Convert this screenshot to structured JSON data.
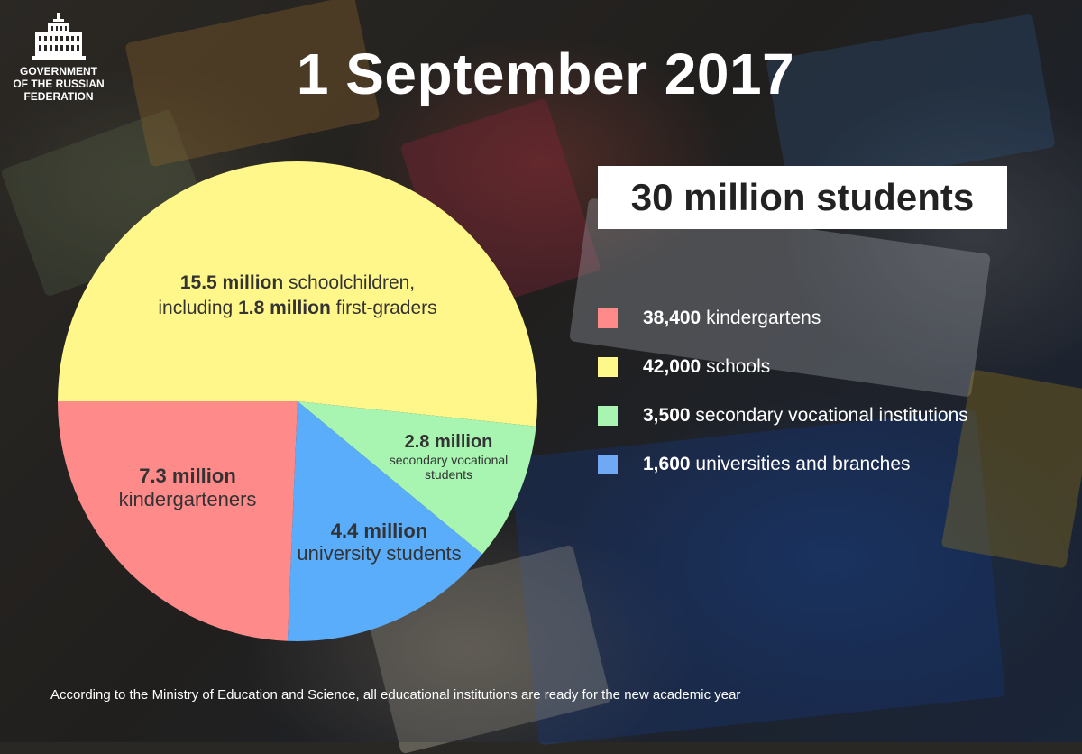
{
  "emblem": {
    "text": "GOVERNMENT\nOF THE RUSSIAN\nFEDERATION"
  },
  "title": "1 September 2017",
  "total": "30 million students",
  "legend": [
    {
      "value": "38,400",
      "label": "kindergartens",
      "color": "#ff8a8a"
    },
    {
      "value": "42,000",
      "label": "schools",
      "color": "#fff78a"
    },
    {
      "value": "3,500",
      "label": "secondary vocational institutions",
      "color": "#a8f5b2"
    },
    {
      "value": "1,600",
      "label": "universities and branches",
      "color": "#6fa8f5"
    }
  ],
  "slice_labels": {
    "schoolchildren": {
      "b1": "15.5 million",
      "t1": " schoolchildren,",
      "t2": "including ",
      "b2": "1.8 million",
      "t3": " first-graders"
    },
    "kindergarteners": {
      "b1": "7.3 million",
      "t1": "kindergarteners"
    },
    "university": {
      "b1": "4.4 million",
      "t1": "university students"
    },
    "vocational": {
      "b1": "2.8 million",
      "t1": "secondary vocational",
      "t2": "students"
    }
  },
  "footnote": "According to the Ministry of Education and Science, all educational institutions are ready for the new academic year",
  "chart_data": {
    "type": "pie",
    "title": "1 September 2017",
    "categories": [
      "schoolchildren",
      "secondary vocational students",
      "university students",
      "kindergarteners"
    ],
    "values": [
      15.5,
      2.8,
      4.4,
      7.3
    ],
    "unit": "million",
    "colors": [
      "#fff78a",
      "#a8f5b2",
      "#5aadfa",
      "#ff8a8a"
    ],
    "start_angle_deg": 180,
    "direction": "clockwise"
  }
}
